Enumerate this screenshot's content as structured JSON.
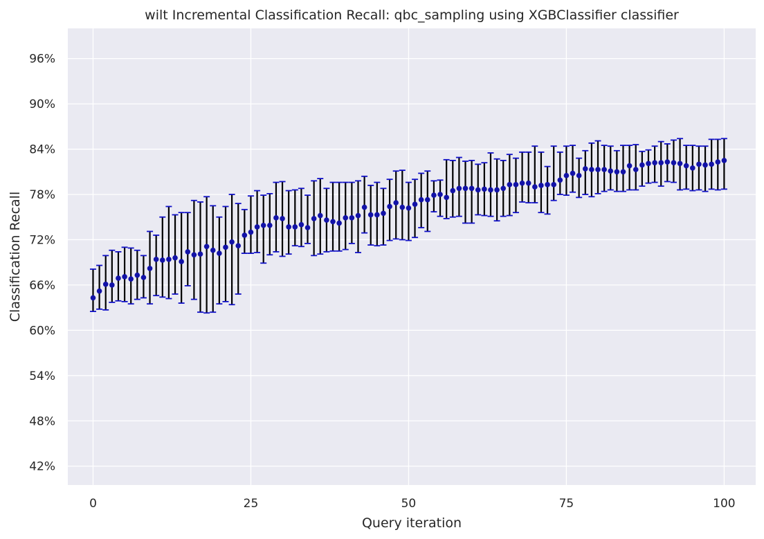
{
  "chart_data": {
    "type": "scatter",
    "title": "wilt Incremental Classification Recall: qbc_sampling using XGBClassifier classifier",
    "xlabel": "Query iteration",
    "ylabel": "Classification Recall",
    "xlim": [
      -4,
      105
    ],
    "ylim": [
      39.5,
      100.0
    ],
    "x_ticks": [
      0,
      25,
      50,
      75,
      100
    ],
    "y_ticks": [
      42,
      48,
      54,
      60,
      66,
      72,
      78,
      84,
      90,
      96
    ],
    "y_tick_labels": [
      "42%",
      "48%",
      "54%",
      "60%",
      "66%",
      "72%",
      "78%",
      "84%",
      "90%",
      "96%"
    ],
    "grid": true,
    "background": "#eaeaf2",
    "point_color": "#1212a8",
    "errorbar_color": "#000000",
    "cap_color": "#1010c8",
    "x": [
      0,
      1,
      2,
      3,
      4,
      5,
      6,
      7,
      8,
      9,
      10,
      11,
      12,
      13,
      14,
      15,
      16,
      17,
      18,
      19,
      20,
      21,
      22,
      23,
      24,
      25,
      26,
      27,
      28,
      29,
      30,
      31,
      32,
      33,
      34,
      35,
      36,
      37,
      38,
      39,
      40,
      41,
      42,
      43,
      44,
      45,
      46,
      47,
      48,
      49,
      50,
      51,
      52,
      53,
      54,
      55,
      56,
      57,
      58,
      59,
      60,
      61,
      62,
      63,
      64,
      65,
      66,
      67,
      68,
      69,
      70,
      71,
      72,
      73,
      74,
      75,
      76,
      77,
      78,
      79,
      80,
      81,
      82,
      83,
      84,
      85,
      86,
      87,
      88,
      89,
      90,
      91,
      92,
      93,
      94,
      95,
      96,
      97,
      98,
      99,
      100
    ],
    "y": [
      64.3,
      65.2,
      66.1,
      66.0,
      66.9,
      67.1,
      66.8,
      67.3,
      67.0,
      68.2,
      69.4,
      69.3,
      69.4,
      69.6,
      69.1,
      70.4,
      70.0,
      70.1,
      71.1,
      70.6,
      70.2,
      71.0,
      71.7,
      71.2,
      72.6,
      73.0,
      73.7,
      73.9,
      73.9,
      74.9,
      74.8,
      73.7,
      73.7,
      74.0,
      73.6,
      74.8,
      75.2,
      74.6,
      74.4,
      74.2,
      74.9,
      74.9,
      75.2,
      76.3,
      75.3,
      75.3,
      75.5,
      76.4,
      76.9,
      76.3,
      76.2,
      76.7,
      77.3,
      77.3,
      77.9,
      78.0,
      77.6,
      78.5,
      78.8,
      78.8,
      78.8,
      78.6,
      78.7,
      78.6,
      78.6,
      78.8,
      79.3,
      79.3,
      79.5,
      79.5,
      79.0,
      79.2,
      79.3,
      79.3,
      79.9,
      80.5,
      80.8,
      80.5,
      81.4,
      81.3,
      81.3,
      81.3,
      81.1,
      81.0,
      81.0,
      81.8,
      81.3,
      81.9,
      82.1,
      82.2,
      82.2,
      82.3,
      82.2,
      82.1,
      81.8,
      81.5,
      82.0,
      81.9,
      82.0,
      82.3,
      82.5
    ],
    "err_low": [
      62.5,
      62.8,
      62.7,
      63.7,
      63.9,
      63.8,
      63.5,
      64.1,
      64.3,
      63.5,
      64.6,
      64.4,
      64.2,
      64.8,
      63.6,
      65.9,
      64.1,
      62.4,
      62.3,
      62.4,
      63.5,
      63.8,
      63.4,
      64.8,
      70.2,
      70.2,
      70.3,
      68.9,
      70.0,
      70.4,
      69.8,
      70.1,
      71.2,
      71.1,
      71.5,
      69.9,
      70.1,
      70.4,
      70.5,
      70.5,
      70.7,
      71.5,
      70.3,
      72.9,
      71.3,
      71.2,
      71.3,
      71.9,
      72.1,
      72.0,
      71.9,
      72.3,
      73.6,
      73.1,
      75.7,
      75.1,
      74.8,
      75.0,
      75.1,
      74.2,
      74.2,
      75.3,
      75.2,
      75.1,
      74.5,
      75.1,
      75.2,
      75.6,
      77.0,
      76.9,
      76.9,
      75.6,
      75.4,
      77.2,
      78.0,
      77.9,
      78.3,
      77.6,
      78.0,
      77.7,
      78.1,
      78.4,
      78.6,
      78.4,
      78.4,
      78.6,
      78.6,
      79.1,
      79.5,
      79.6,
      79.1,
      79.7,
      79.6,
      78.6,
      78.7,
      78.5,
      78.6,
      78.4,
      78.7,
      78.6,
      78.7
    ],
    "err_high": [
      68.1,
      68.6,
      69.9,
      70.6,
      70.4,
      71.0,
      70.9,
      70.6,
      69.9,
      73.1,
      72.6,
      75.0,
      76.4,
      75.3,
      75.6,
      75.6,
      77.2,
      77.0,
      77.7,
      76.5,
      75.0,
      76.4,
      78.0,
      76.8,
      76.0,
      77.8,
      78.5,
      77.9,
      78.1,
      79.6,
      79.7,
      78.5,
      78.6,
      78.8,
      77.9,
      79.8,
      80.1,
      78.8,
      79.6,
      79.6,
      79.6,
      79.6,
      79.8,
      80.4,
      79.2,
      79.6,
      78.8,
      80.0,
      81.1,
      81.2,
      79.6,
      80.0,
      80.8,
      81.1,
      79.8,
      79.9,
      82.6,
      82.5,
      82.9,
      82.4,
      82.5,
      82.0,
      82.2,
      83.5,
      82.7,
      82.5,
      83.3,
      82.8,
      83.6,
      83.6,
      84.4,
      83.6,
      81.7,
      84.4,
      83.6,
      84.4,
      84.5,
      82.8,
      83.8,
      84.8,
      85.1,
      84.5,
      84.4,
      83.8,
      84.5,
      84.5,
      84.6,
      83.7,
      83.9,
      84.4,
      85.0,
      84.7,
      85.2,
      85.4,
      84.5,
      84.5,
      84.4,
      84.4,
      85.3,
      85.3,
      85.4
    ]
  }
}
